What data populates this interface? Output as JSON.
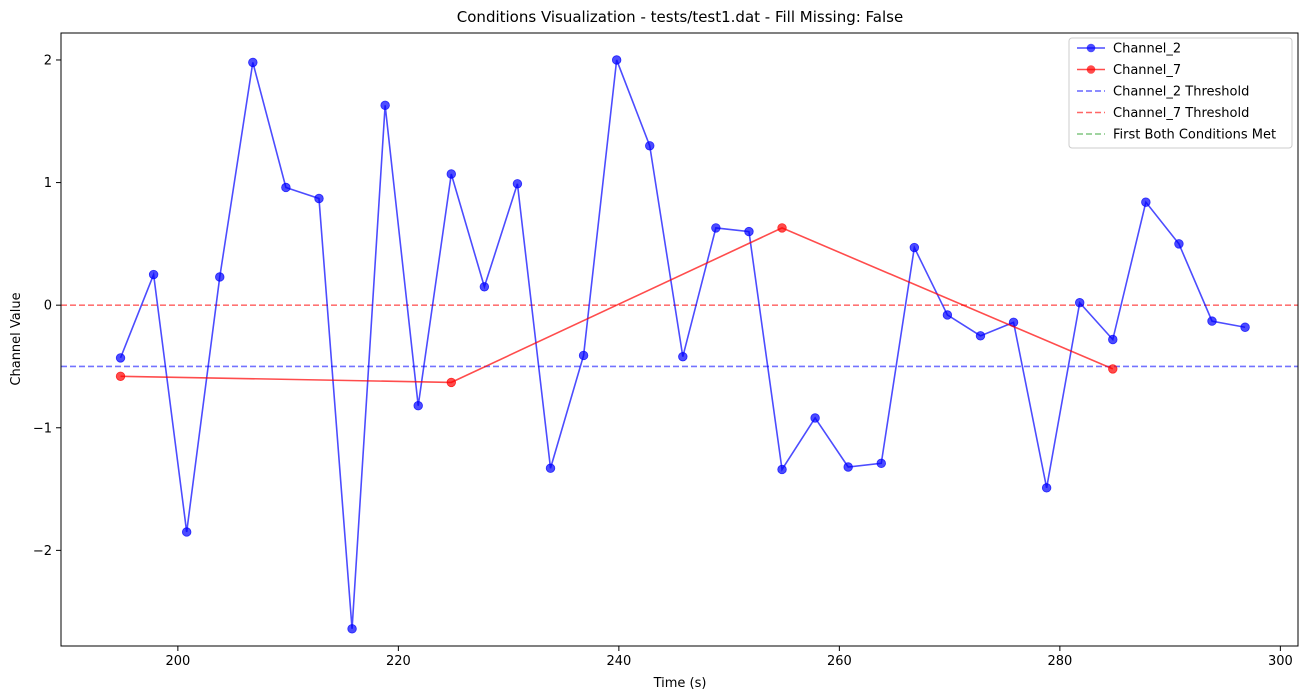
{
  "chart_data": {
    "type": "line",
    "title": "Conditions Visualization - tests/test1.dat - Fill Missing: False",
    "xlabel": "Time (s)",
    "ylabel": "Channel Value",
    "xlim": [
      189.4,
      301.6
    ],
    "ylim": [
      -2.78,
      2.22
    ],
    "x_ticks": [
      {
        "value": 200,
        "label": "200"
      },
      {
        "value": 220,
        "label": "220"
      },
      {
        "value": 240,
        "label": "240"
      },
      {
        "value": 260,
        "label": "260"
      },
      {
        "value": 280,
        "label": "280"
      },
      {
        "value": 300,
        "label": "300"
      }
    ],
    "y_ticks": [
      {
        "value": -2,
        "label": "−2"
      },
      {
        "value": -1,
        "label": "−1"
      },
      {
        "value": 0,
        "label": "0"
      },
      {
        "value": 1,
        "label": "1"
      },
      {
        "value": 2,
        "label": "2"
      }
    ],
    "grid": false,
    "legend_position": "top-right",
    "series": [
      {
        "name": "Channel_2",
        "color": "#0000ff",
        "marker": "circle",
        "x": [
          194.8,
          197.8,
          200.8,
          203.8,
          206.8,
          209.8,
          212.8,
          215.8,
          218.8,
          221.8,
          224.8,
          227.8,
          230.8,
          233.8,
          236.8,
          239.8,
          242.8,
          245.8,
          248.8,
          251.8,
          254.8,
          257.8,
          260.8,
          263.8,
          266.8,
          269.8,
          272.8,
          275.8,
          278.8,
          281.8,
          284.8,
          287.8,
          290.8,
          293.8,
          296.8
        ],
        "y": [
          -0.43,
          0.25,
          -1.85,
          0.23,
          1.98,
          0.96,
          0.87,
          -2.64,
          1.63,
          -0.82,
          1.07,
          0.15,
          0.99,
          -1.33,
          -0.41,
          2.0,
          1.3,
          -0.42,
          0.63,
          0.6,
          -1.34,
          -0.92,
          -1.32,
          -1.29,
          0.47,
          -0.08,
          -0.25,
          -0.14,
          -1.49,
          0.02,
          -0.28,
          0.84,
          0.5,
          -0.13,
          -0.18
        ]
      },
      {
        "name": "Channel_7",
        "color": "#ff0000",
        "marker": "circle",
        "x": [
          194.8,
          224.8,
          254.8,
          284.8
        ],
        "y": [
          -0.58,
          -0.63,
          0.63,
          -0.52
        ]
      }
    ],
    "thresholds": [
      {
        "name": "Channel_2 Threshold",
        "value": -0.5,
        "color": "#0000ff"
      },
      {
        "name": "Channel_7 Threshold",
        "value": 0,
        "color": "#ff0000"
      }
    ],
    "legend": [
      {
        "label": "Channel_2",
        "color": "#0000ff",
        "style": "line-marker"
      },
      {
        "label": "Channel_7",
        "color": "#ff0000",
        "style": "line-marker"
      },
      {
        "label": "Channel_2 Threshold",
        "color": "#0000ff",
        "style": "dashed"
      },
      {
        "label": "Channel_7 Threshold",
        "color": "#ff0000",
        "style": "dashed"
      },
      {
        "label": "First Both Conditions Met",
        "color": "#2ca02c",
        "style": "dashed"
      }
    ]
  }
}
